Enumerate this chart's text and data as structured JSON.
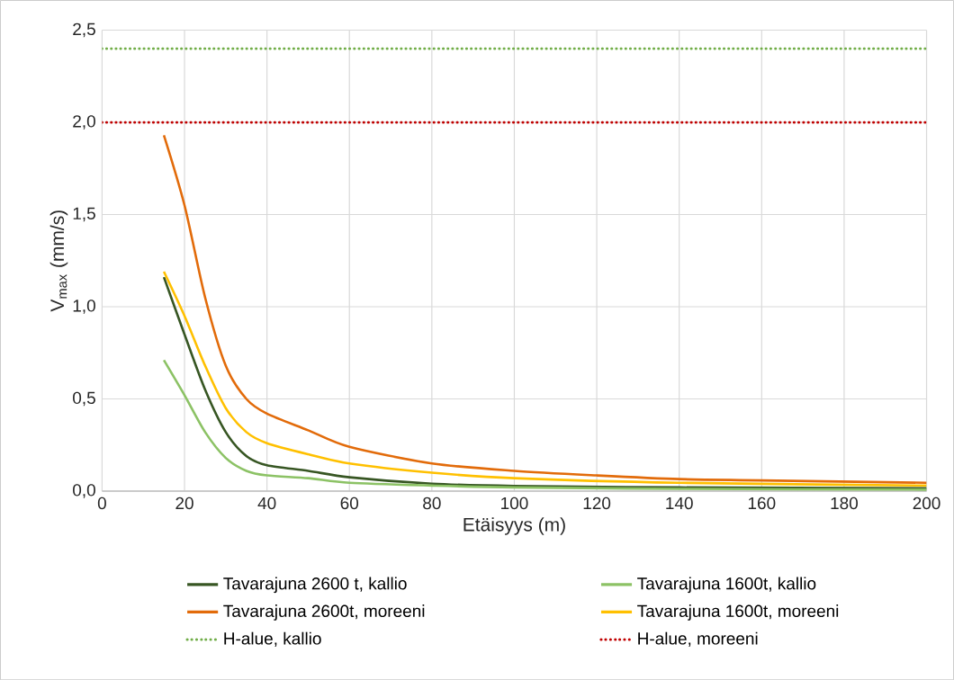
{
  "chart_data": {
    "type": "line",
    "xlabel": "Etäisyys (m)",
    "ylabel": "V$_{max}$ (mm/s)",
    "xlim": [
      0,
      200
    ],
    "xticks": [
      0,
      20,
      40,
      60,
      80,
      100,
      120,
      140,
      160,
      180,
      200
    ],
    "ylim": [
      0,
      2.5
    ],
    "yticks": [
      {
        "value": 0,
        "label": "0,0"
      },
      {
        "value": 0.5,
        "label": "0,5"
      },
      {
        "value": 1,
        "label": "1,0"
      },
      {
        "value": 1.5,
        "label": "1,5"
      },
      {
        "value": 2,
        "label": "2,0"
      },
      {
        "value": 2.5,
        "label": "2,5"
      }
    ],
    "grid": true,
    "legend": "bottom",
    "series": [
      {
        "name": "Tavarajuna 2600 t, kallio",
        "color": "#375623",
        "line_style": "solid",
        "x": [
          15,
          20,
          25,
          30,
          35,
          40,
          50,
          60,
          80,
          100,
          140,
          200
        ],
        "values": [
          1.16,
          0.85,
          0.55,
          0.32,
          0.19,
          0.14,
          0.11,
          0.075,
          0.04,
          0.028,
          0.02,
          0.015
        ]
      },
      {
        "name": "Tavarajuna 1600t, kallio",
        "color": "#8cc265",
        "line_style": "solid",
        "x": [
          15,
          20,
          25,
          30,
          35,
          40,
          50,
          60,
          80,
          100,
          140,
          200
        ],
        "values": [
          0.71,
          0.52,
          0.32,
          0.18,
          0.11,
          0.085,
          0.07,
          0.045,
          0.03,
          0.02,
          0.012,
          0.008
        ]
      },
      {
        "name": "Tavarajuna 2600t, moreeni",
        "color": "#e26b0a",
        "line_style": "solid",
        "x": [
          15,
          20,
          25,
          30,
          35,
          40,
          50,
          60,
          80,
          100,
          120,
          140,
          160,
          200
        ],
        "values": [
          1.93,
          1.55,
          1.05,
          0.68,
          0.5,
          0.42,
          0.33,
          0.24,
          0.15,
          0.11,
          0.085,
          0.065,
          0.058,
          0.045
        ]
      },
      {
        "name": "Tavarajuna 1600t, moreeni",
        "color": "#ffc000",
        "line_style": "solid",
        "x": [
          15,
          20,
          25,
          30,
          35,
          40,
          50,
          60,
          80,
          100,
          140,
          200
        ],
        "values": [
          1.19,
          0.95,
          0.68,
          0.45,
          0.32,
          0.26,
          0.2,
          0.15,
          0.1,
          0.07,
          0.045,
          0.03
        ]
      },
      {
        "name": "H-alue, kallio",
        "color": "#70ad47",
        "line_style": "dotted",
        "x": [
          0,
          200
        ],
        "values": [
          2.4,
          2.4
        ]
      },
      {
        "name": "H-alue, moreeni",
        "color": "#c00000",
        "line_style": "dotted",
        "x": [
          0,
          200
        ],
        "values": [
          2.0,
          2.0
        ]
      }
    ]
  }
}
